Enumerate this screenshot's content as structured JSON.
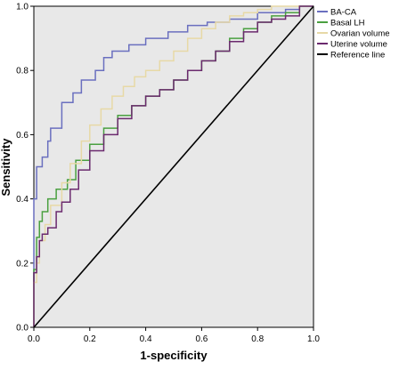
{
  "chart_data": {
    "type": "line",
    "title": "",
    "xlabel": "1-specificity",
    "ylabel": "Sensitivity",
    "xlim": [
      0,
      1
    ],
    "ylim": [
      0,
      1
    ],
    "xticks": [
      "0.0",
      "0.2",
      "0.4",
      "0.6",
      "0.8",
      "1.0"
    ],
    "yticks": [
      "0.0",
      "0.2",
      "0.4",
      "0.6",
      "0.8",
      "1.0"
    ],
    "grid": false,
    "legend_position": "right",
    "plot_background": "#e8e8e8",
    "series": [
      {
        "name": "BA-CA",
        "color": "#6a6fbf",
        "x": [
          0,
          0,
          0.01,
          0.01,
          0.03,
          0.05,
          0.06,
          0.1,
          0.14,
          0.17,
          0.22,
          0.25,
          0.28,
          0.34,
          0.4,
          0.48,
          0.55,
          0.62,
          0.7,
          0.8,
          0.9,
          0.95,
          1.0
        ],
        "y": [
          0,
          0.33,
          0.4,
          0.45,
          0.5,
          0.53,
          0.58,
          0.62,
          0.7,
          0.73,
          0.77,
          0.8,
          0.84,
          0.86,
          0.88,
          0.9,
          0.92,
          0.94,
          0.95,
          0.96,
          0.98,
          0.99,
          1.0
        ]
      },
      {
        "name": "Basal LH",
        "color": "#4aa040",
        "x": [
          0,
          0.01,
          0.02,
          0.03,
          0.05,
          0.08,
          0.12,
          0.15,
          0.2,
          0.25,
          0.3,
          0.35,
          0.4,
          0.45,
          0.5,
          0.55,
          0.6,
          0.65,
          0.7,
          0.75,
          0.8,
          0.85,
          0.9,
          0.95,
          1.0
        ],
        "y": [
          0,
          0.18,
          0.28,
          0.33,
          0.36,
          0.4,
          0.43,
          0.46,
          0.52,
          0.57,
          0.62,
          0.66,
          0.69,
          0.72,
          0.74,
          0.77,
          0.8,
          0.83,
          0.86,
          0.9,
          0.93,
          0.95,
          0.97,
          0.98,
          1.0
        ]
      },
      {
        "name": "Ovarian volume",
        "color": "#e7d9a6",
        "x": [
          0,
          0.01,
          0.02,
          0.04,
          0.06,
          0.1,
          0.13,
          0.17,
          0.2,
          0.24,
          0.28,
          0.32,
          0.36,
          0.4,
          0.45,
          0.5,
          0.55,
          0.6,
          0.65,
          0.7,
          0.75,
          0.8,
          0.85,
          0.9,
          1.0
        ],
        "y": [
          0,
          0.14,
          0.2,
          0.27,
          0.32,
          0.38,
          0.45,
          0.51,
          0.58,
          0.63,
          0.68,
          0.72,
          0.75,
          0.78,
          0.8,
          0.83,
          0.86,
          0.9,
          0.93,
          0.95,
          0.97,
          0.98,
          0.99,
          1.0,
          1.0
        ]
      },
      {
        "name": "Uterine volume",
        "color": "#6b2a6e",
        "x": [
          0,
          0.01,
          0.02,
          0.03,
          0.05,
          0.08,
          0.1,
          0.13,
          0.16,
          0.2,
          0.25,
          0.3,
          0.35,
          0.4,
          0.45,
          0.5,
          0.55,
          0.6,
          0.65,
          0.7,
          0.75,
          0.8,
          0.85,
          0.9,
          0.95,
          1.0
        ],
        "y": [
          0,
          0.17,
          0.22,
          0.27,
          0.29,
          0.31,
          0.36,
          0.39,
          0.43,
          0.49,
          0.55,
          0.6,
          0.65,
          0.69,
          0.72,
          0.74,
          0.77,
          0.8,
          0.83,
          0.86,
          0.89,
          0.92,
          0.95,
          0.96,
          0.97,
          1.0
        ]
      },
      {
        "name": "Reference line",
        "color": "#000000",
        "x": [
          0,
          1
        ],
        "y": [
          0,
          1
        ]
      }
    ]
  }
}
